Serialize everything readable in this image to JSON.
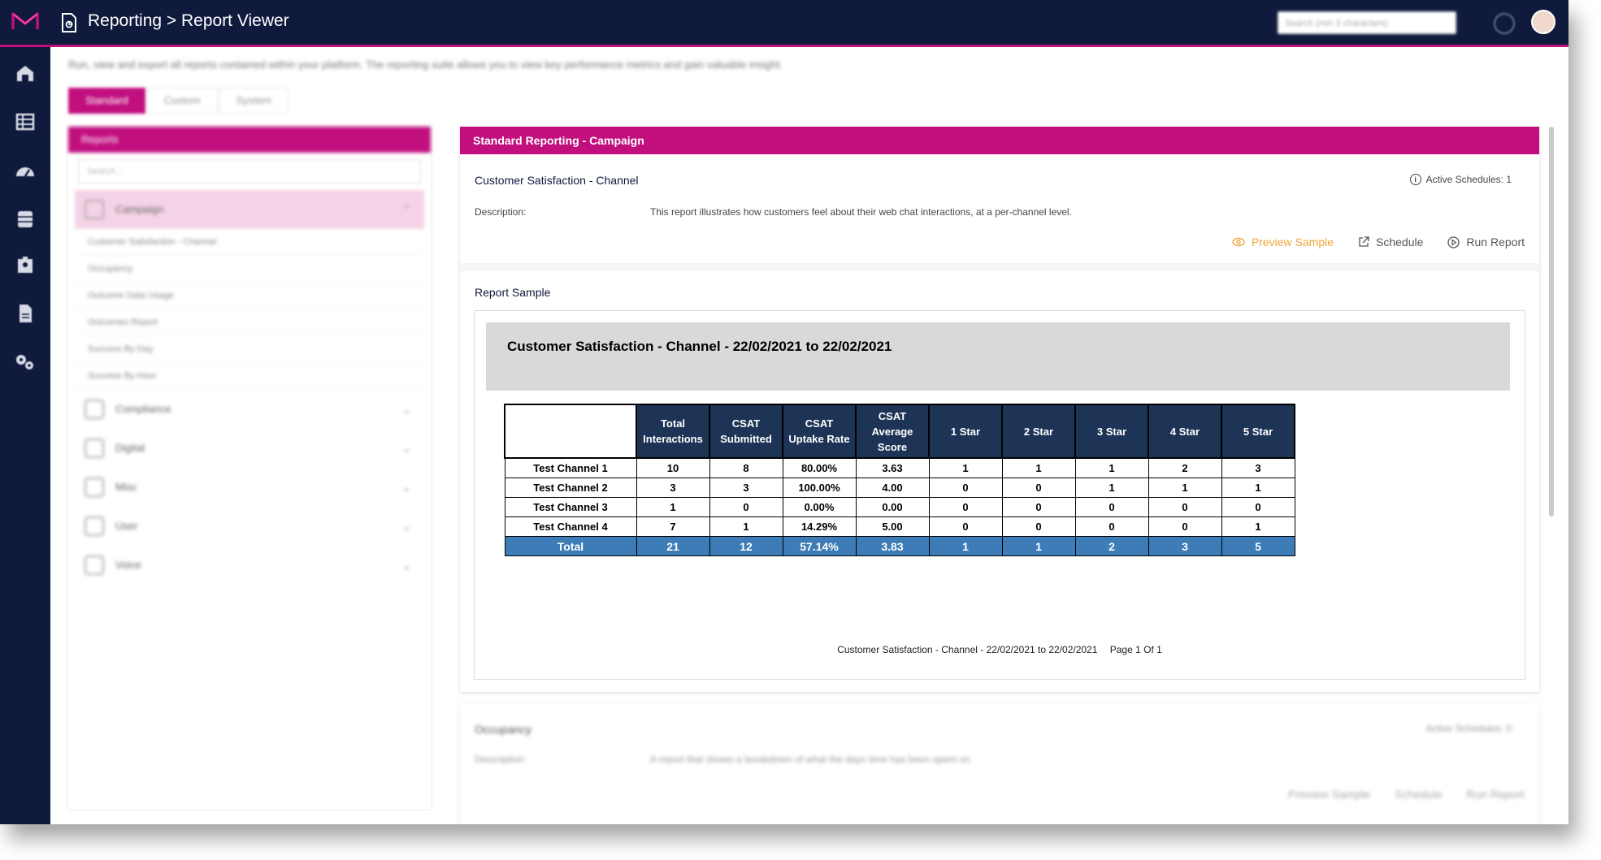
{
  "header": {
    "title": "Reporting > Report Viewer",
    "search_placeholder": "Search (min 3 characters)"
  },
  "colors": {
    "brand": "#c10f7e",
    "navy": "#0f1a3d",
    "table_header": "#1e3457",
    "table_total": "#3e7cb8",
    "preview_action": "#f0a43a"
  },
  "sidebar_icons": [
    "home-icon",
    "list-icon",
    "dashboard-icon",
    "database-icon",
    "contacts-icon",
    "reports-icon",
    "settings-icon"
  ],
  "intro_text": "Run, view and export all reports contained within your platform. The reporting suite allows you to view key performance metrics and gain valuable insight.",
  "tabs": [
    {
      "label": "Standard",
      "active": true
    },
    {
      "label": "Custom",
      "active": false
    },
    {
      "label": "System",
      "active": false
    }
  ],
  "left_panel": {
    "title": "Reports",
    "search_placeholder": "Search...",
    "open_category": "Campaign",
    "open_items": [
      "Customer Satisfaction - Channel",
      "Occupancy",
      "Outcome Data Usage",
      "Outcomes Report",
      "Success By Day",
      "Success By Hour"
    ],
    "other_categories": [
      "Compliance",
      "Digital",
      "Misc",
      "User",
      "Voice"
    ]
  },
  "report_panel": {
    "header": "Standard Reporting - Campaign",
    "report_title": "Customer Satisfaction - Channel",
    "active_schedules": "Active Schedules: 1",
    "description_label": "Description:",
    "description": "This report illustrates how customers feel about their web chat interactions, at a per-channel level.",
    "actions": {
      "preview": "Preview Sample",
      "schedule": "Schedule",
      "run": "Run Report"
    },
    "sample_label": "Report Sample"
  },
  "sample": {
    "title": "Customer Satisfaction - Channel - 22/02/2021 to 22/02/2021",
    "columns": [
      "Total Interactions",
      "CSAT Submitted",
      "CSAT Uptake Rate",
      "CSAT Average Score",
      "1 Star",
      "2 Star",
      "3 Star",
      "4 Star",
      "5 Star"
    ],
    "rows": [
      {
        "label": "Test Channel 1",
        "values": [
          "10",
          "8",
          "80.00%",
          "3.63",
          "1",
          "1",
          "1",
          "2",
          "3"
        ]
      },
      {
        "label": "Test Channel 2",
        "values": [
          "3",
          "3",
          "100.00%",
          "4.00",
          "0",
          "0",
          "1",
          "1",
          "1"
        ]
      },
      {
        "label": "Test Channel 3",
        "values": [
          "1",
          "0",
          "0.00%",
          "0.00",
          "0",
          "0",
          "0",
          "0",
          "0"
        ]
      },
      {
        "label": "Test Channel 4",
        "values": [
          "7",
          "1",
          "14.29%",
          "5.00",
          "0",
          "0",
          "0",
          "0",
          "1"
        ]
      }
    ],
    "total": {
      "label": "Total",
      "values": [
        "21",
        "12",
        "57.14%",
        "3.83",
        "1",
        "1",
        "2",
        "3",
        "5"
      ]
    },
    "footer_title": "Customer Satisfaction - Channel - 22/02/2021 to 22/02/2021",
    "footer_page": "Page 1 Of 1"
  },
  "next_report": {
    "title": "Occupancy",
    "active_schedules": "Active Schedules: 0",
    "description_label": "Description:",
    "description": "A report that shows a breakdown of what the days time has been spent on",
    "actions": {
      "preview": "Preview Sample",
      "schedule": "Schedule",
      "run": "Run Report"
    }
  }
}
